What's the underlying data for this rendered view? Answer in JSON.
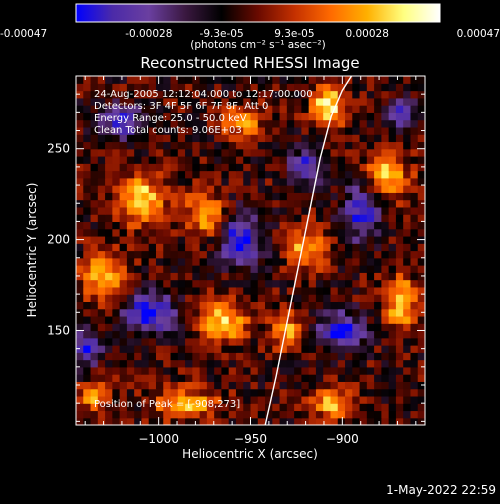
{
  "colorbar": {
    "tick_labels": [
      "-0.00047",
      "-0.00028",
      "-9.3e-05",
      "9.3e-05",
      "0.00028",
      "0.00047"
    ],
    "units_label": "(photons cm⁻² s⁻¹ asec⁻²)",
    "colormap": [
      "#0000ff",
      "#4b2aa8",
      "#6a3fa0",
      "#3a1840",
      "#000000",
      "#6a0a00",
      "#c43000",
      "#ff6a00",
      "#ffb000",
      "#ffff80",
      "#ffffff"
    ]
  },
  "info_lines": [
    "24-Aug-2005 12:12:04.000 to 12:17:00.000",
    "Detectors: 3F 4F 5F 6F 7F 8F, Att 0",
    "Energy Range: 25.0 - 50.0 keV",
    "Clean     Total counts: 9.06E+03"
  ],
  "peak_label": "Position of Peak = [-908,273]",
  "footer_timestamp": "1-May-2022 22:59",
  "chart_data": {
    "type": "heatmap",
    "title": "Reconstructed RHESSI Image",
    "xlabel": "Heliocentric X (arcsec)",
    "ylabel": "Heliocentric Y (arcsec)",
    "xlim": [
      -1045,
      -855
    ],
    "ylim": [
      98,
      290
    ],
    "xticks": [
      -1000,
      -950,
      -900
    ],
    "xtick_labels": [
      "−1000",
      "−950",
      "−900"
    ],
    "yticks": [
      150,
      200,
      250
    ],
    "ytick_labels": [
      "150",
      "200",
      "250"
    ],
    "value_range": [
      -0.00047,
      0.00047
    ],
    "peak_position": [
      -908,
      273
    ],
    "limb_curve": {
      "x": [
        -942,
        -936,
        -930,
        -924,
        -918,
        -912,
        -906,
        -900,
        -895
      ],
      "y": [
        98,
        125,
        155,
        185,
        215,
        245,
        268,
        282,
        290
      ]
    },
    "grid": {
      "nx": 48,
      "ny": 48,
      "seed": 7,
      "hotspots": [
        {
          "x": -908,
          "y": 273,
          "amp": 1.0,
          "sx": 6,
          "sy": 8
        },
        {
          "x": -1010,
          "y": 222,
          "amp": 0.85,
          "sx": 9,
          "sy": 10
        },
        {
          "x": -965,
          "y": 155,
          "amp": 0.8,
          "sx": 10,
          "sy": 8
        },
        {
          "x": -1030,
          "y": 180,
          "amp": 0.75,
          "sx": 8,
          "sy": 9
        },
        {
          "x": -975,
          "y": 215,
          "amp": 0.7,
          "sx": 7,
          "sy": 9
        },
        {
          "x": -920,
          "y": 195,
          "amp": 0.7,
          "sx": 7,
          "sy": 8
        },
        {
          "x": -868,
          "y": 165,
          "amp": 0.85,
          "sx": 6,
          "sy": 10
        },
        {
          "x": -875,
          "y": 235,
          "amp": 0.75,
          "sx": 8,
          "sy": 9
        },
        {
          "x": -985,
          "y": 110,
          "amp": 0.7,
          "sx": 12,
          "sy": 6
        },
        {
          "x": -905,
          "y": 110,
          "amp": 0.7,
          "sx": 9,
          "sy": 6
        },
        {
          "x": -1035,
          "y": 115,
          "amp": 0.65,
          "sx": 6,
          "sy": 6
        },
        {
          "x": -955,
          "y": 265,
          "amp": 0.6,
          "sx": 8,
          "sy": 6
        },
        {
          "x": -930,
          "y": 150,
          "amp": 0.7,
          "sx": 6,
          "sy": 7
        }
      ],
      "coldspots": [
        {
          "x": -1005,
          "y": 160,
          "amp": 0.9,
          "sx": 10,
          "sy": 8
        },
        {
          "x": -955,
          "y": 200,
          "amp": 0.85,
          "sx": 8,
          "sy": 10
        },
        {
          "x": -900,
          "y": 150,
          "amp": 0.85,
          "sx": 9,
          "sy": 7
        },
        {
          "x": -890,
          "y": 215,
          "amp": 0.8,
          "sx": 7,
          "sy": 10
        },
        {
          "x": -1020,
          "y": 265,
          "amp": 0.8,
          "sx": 8,
          "sy": 6
        },
        {
          "x": -1040,
          "y": 140,
          "amp": 0.7,
          "sx": 6,
          "sy": 8
        },
        {
          "x": -920,
          "y": 240,
          "amp": 0.7,
          "sx": 6,
          "sy": 7
        },
        {
          "x": -868,
          "y": 270,
          "amp": 0.6,
          "sx": 6,
          "sy": 6
        }
      ]
    }
  }
}
